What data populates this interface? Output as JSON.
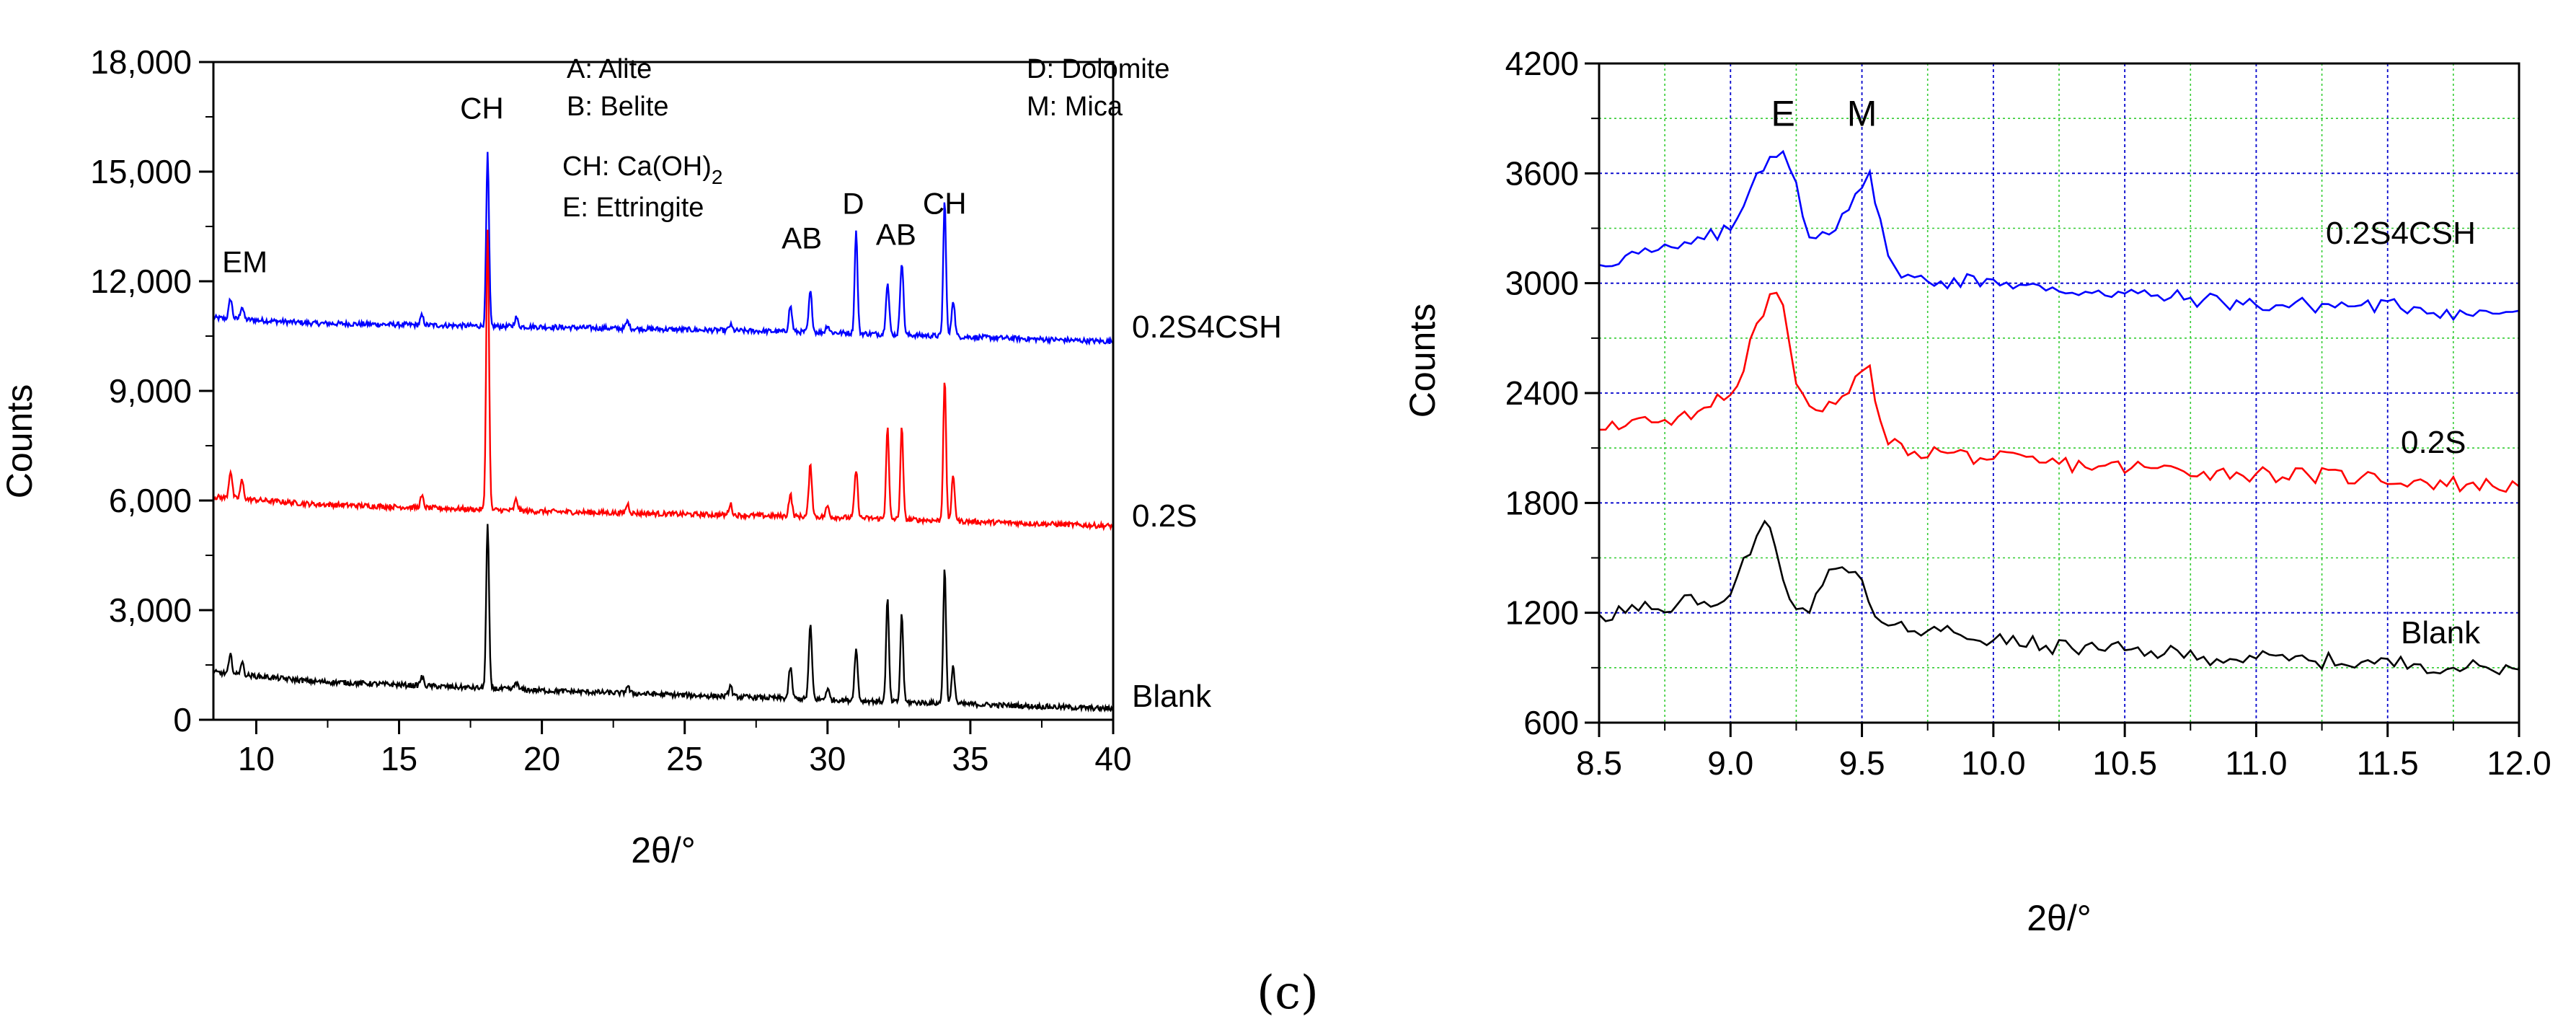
{
  "chart_data": [
    {
      "type": "line",
      "title": "",
      "xlabel": "2θ/°",
      "ylabel": "Counts",
      "xlim": [
        8.5,
        40
      ],
      "ylim": [
        0,
        18000
      ],
      "grid": false,
      "x_ticks": [
        10,
        15,
        20,
        25,
        30,
        35,
        40
      ],
      "x_tick_labels": [
        "10",
        "15",
        "20",
        "25",
        "30",
        "35",
        "40"
      ],
      "y_ticks": [
        0,
        3000,
        6000,
        9000,
        12000,
        15000,
        18000
      ],
      "y_tick_labels": [
        "0",
        "3,000",
        "6,000",
        "9,000",
        "12,000",
        "15,000",
        "18,000"
      ],
      "legend": [
        "A: Alite",
        "B: Belite",
        "CH: Ca(OH)",
        "E: Ettringite",
        "D: Dolomite",
        "M: Mica"
      ],
      "legend_subscript": "2",
      "series": [
        {
          "name": "0.2S4CSH",
          "color": "#0000ff",
          "offset": 10800,
          "baseline": [
            [
              8.5,
              11000
            ],
            [
              12,
              10850
            ],
            [
              20,
              10750
            ],
            [
              30,
              10600
            ],
            [
              40,
              10350
            ]
          ]
        },
        {
          "name": "0.2S",
          "color": "#ff0000",
          "offset": 5800,
          "baseline": [
            [
              8.5,
              6100
            ],
            [
              12,
              5900
            ],
            [
              20,
              5700
            ],
            [
              30,
              5550
            ],
            [
              40,
              5300
            ]
          ]
        },
        {
          "name": "Blank",
          "color": "#000000",
          "offset": 0,
          "baseline": [
            [
              8.5,
              1300
            ],
            [
              12,
              1050
            ],
            [
              20,
              800
            ],
            [
              30,
              550
            ],
            [
              40,
              300
            ]
          ]
        }
      ],
      "peaks": [
        {
          "x": 9.1,
          "h": [
            550,
            750,
            500
          ]
        },
        {
          "x": 9.5,
          "h": [
            350,
            500,
            350
          ]
        },
        {
          "x": 15.8,
          "h": [
            250,
            300,
            250
          ]
        },
        {
          "x": 18.1,
          "h": [
            4700,
            7700,
            4500
          ]
        },
        {
          "x": 19.1,
          "h": [
            250,
            300,
            200
          ]
        },
        {
          "x": 23.0,
          "h": [
            200,
            250,
            200
          ]
        },
        {
          "x": 26.6,
          "h": [
            150,
            300,
            300
          ]
        },
        {
          "x": 28.7,
          "h": [
            700,
            600,
            850
          ]
        },
        {
          "x": 29.4,
          "h": [
            1100,
            1400,
            2000
          ]
        },
        {
          "x": 30.0,
          "h": [
            200,
            300,
            300
          ]
        },
        {
          "x": 31.0,
          "h": [
            2800,
            1300,
            1400
          ]
        },
        {
          "x": 32.1,
          "h": [
            1400,
            2500,
            2800
          ]
        },
        {
          "x": 32.6,
          "h": [
            2000,
            2500,
            2400
          ]
        },
        {
          "x": 34.1,
          "h": [
            3700,
            3900,
            3700
          ]
        },
        {
          "x": 34.4,
          "h": [
            1000,
            1200,
            1000
          ]
        }
      ],
      "annotations": [
        {
          "text": "EM",
          "x": 9.6,
          "y": 12250
        },
        {
          "text": "CH",
          "x": 17.9,
          "y": 16450
        },
        {
          "text": "AB",
          "x": 29.1,
          "y": 12900
        },
        {
          "text": "D",
          "x": 30.9,
          "y": 13850
        },
        {
          "text": "AB",
          "x": 32.4,
          "y": 13000
        },
        {
          "text": "CH",
          "x": 34.1,
          "y": 13850
        }
      ]
    },
    {
      "type": "line",
      "title": "",
      "xlabel": "2θ/°",
      "ylabel": "Counts",
      "xlim": [
        8.5,
        12.0
      ],
      "ylim": [
        600,
        4200
      ],
      "grid": true,
      "x_ticks": [
        8.5,
        9.0,
        9.5,
        10.0,
        10.5,
        11.0,
        11.5,
        12.0
      ],
      "x_tick_labels": [
        "8.5",
        "9.0",
        "9.5",
        "10.0",
        "10.5",
        "11.0",
        "11.5",
        "12.0"
      ],
      "y_ticks": [
        600,
        1200,
        1800,
        2400,
        3000,
        3600,
        4200
      ],
      "y_tick_labels": [
        "600",
        "1200",
        "1800",
        "2400",
        "3000",
        "3600",
        "4200"
      ],
      "series": [
        {
          "name": "0.2S4CSH",
          "color": "#0000ff",
          "x": [
            8.5,
            8.6,
            8.7,
            8.8,
            8.9,
            9.0,
            9.05,
            9.1,
            9.15,
            9.2,
            9.25,
            9.3,
            9.35,
            9.4,
            9.45,
            9.5,
            9.53,
            9.57,
            9.6,
            9.65,
            9.8,
            10.0,
            10.2,
            10.4,
            10.6,
            10.8,
            11.0,
            11.2,
            11.4,
            11.6,
            11.8,
            12.0
          ],
          "y": [
            3100,
            3150,
            3170,
            3190,
            3240,
            3290,
            3420,
            3600,
            3690,
            3720,
            3550,
            3250,
            3280,
            3290,
            3400,
            3520,
            3610,
            3350,
            3150,
            3030,
            3010,
            3020,
            2960,
            2960,
            2930,
            2910,
            2880,
            2880,
            2880,
            2870,
            2830,
            2850
          ]
        },
        {
          "name": "0.2S",
          "color": "#ff0000",
          "x": [
            8.5,
            8.6,
            8.7,
            8.8,
            8.9,
            9.0,
            9.05,
            9.1,
            9.15,
            9.2,
            9.25,
            9.3,
            9.35,
            9.4,
            9.45,
            9.5,
            9.53,
            9.57,
            9.6,
            9.7,
            9.8,
            10.0,
            10.2,
            10.4,
            10.6,
            10.8,
            11.0,
            11.2,
            11.4,
            11.6,
            11.8,
            12.0
          ],
          "y": [
            2200,
            2220,
            2240,
            2270,
            2320,
            2390,
            2520,
            2780,
            2940,
            2880,
            2450,
            2330,
            2300,
            2340,
            2400,
            2520,
            2550,
            2250,
            2120,
            2080,
            2080,
            2040,
            2020,
            2000,
            1990,
            1970,
            1960,
            1950,
            1940,
            1920,
            1900,
            1890
          ]
        },
        {
          "name": "Blank",
          "color": "#000000",
          "x": [
            8.5,
            8.6,
            8.7,
            8.8,
            8.9,
            9.0,
            9.05,
            9.1,
            9.13,
            9.17,
            9.2,
            9.25,
            9.3,
            9.35,
            9.4,
            9.45,
            9.5,
            9.55,
            9.6,
            9.7,
            9.8,
            10.0,
            10.2,
            10.4,
            10.6,
            10.8,
            11.0,
            11.2,
            11.4,
            11.6,
            11.8,
            12.0
          ],
          "y": [
            1190,
            1200,
            1220,
            1250,
            1260,
            1300,
            1500,
            1620,
            1700,
            1560,
            1380,
            1220,
            1200,
            1350,
            1440,
            1420,
            1380,
            1180,
            1130,
            1100,
            1100,
            1050,
            1020,
            1000,
            990,
            960,
            950,
            940,
            930,
            920,
            900,
            890
          ]
        }
      ],
      "annotations": [
        {
          "text": "E",
          "x": 9.2,
          "y": 3860
        },
        {
          "text": "M",
          "x": 9.5,
          "y": 3860
        }
      ]
    }
  ],
  "caption": "(c)"
}
